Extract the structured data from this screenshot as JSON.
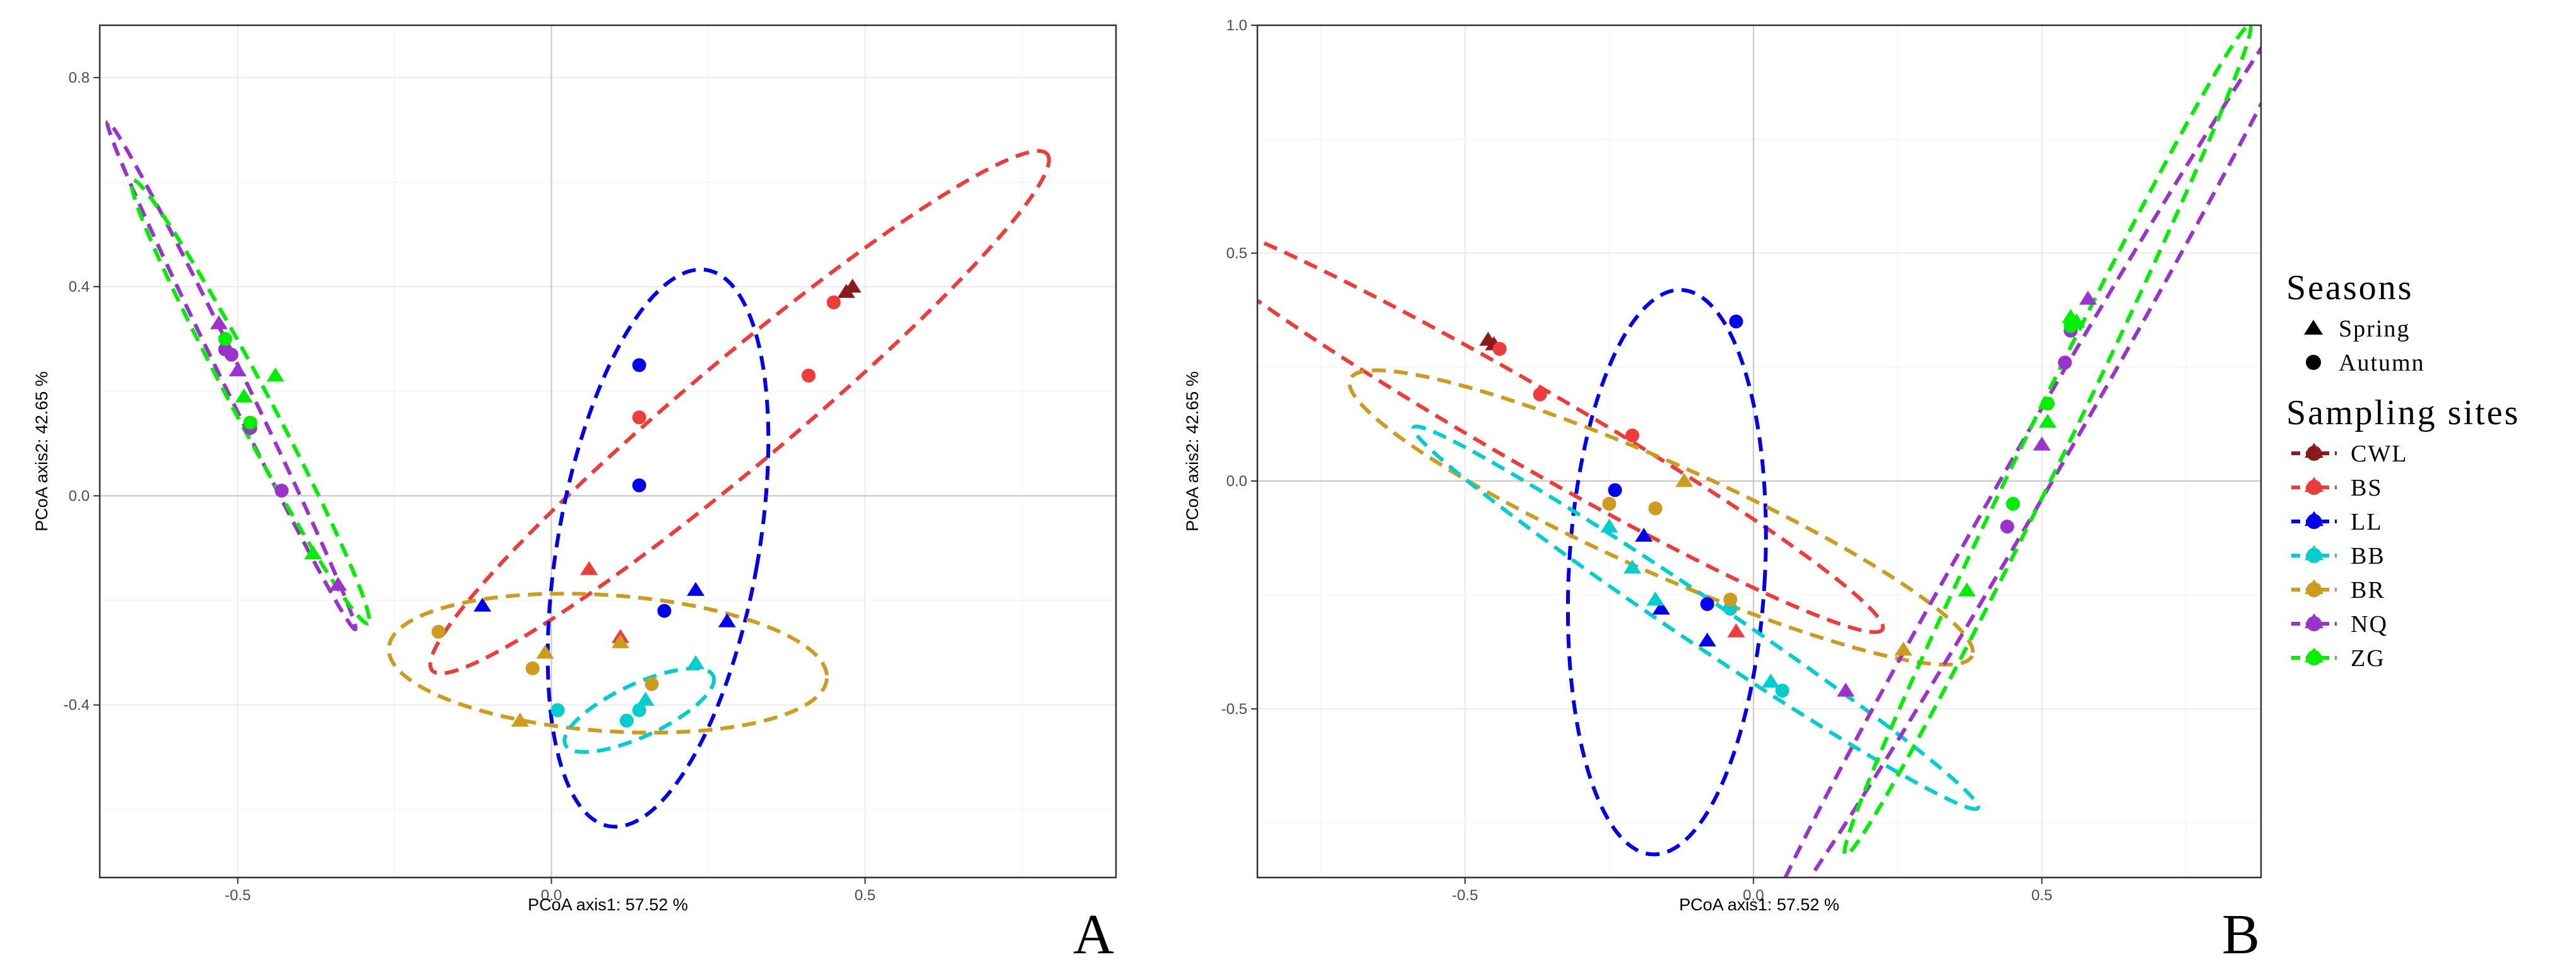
{
  "colors": {
    "CWL": "#8B1A1A",
    "BS": "#EE3B3B",
    "LL": "#0000EE",
    "BB": "#00CDCD",
    "BR": "#CD9B1D",
    "NQ": "#9A32CD",
    "ZG": "#00EE00"
  },
  "legend": {
    "seasons_title": "Seasons",
    "seasons": [
      {
        "label": "Spring",
        "shape": "triangle"
      },
      {
        "label": "Autumn",
        "shape": "circle"
      }
    ],
    "sites_title": "Sampling sites",
    "sites": [
      "CWL",
      "BS",
      "LL",
      "BB",
      "BR",
      "NQ",
      "ZG"
    ]
  },
  "chart_data": [
    {
      "type": "scatter",
      "panel_label": "A",
      "xlabel": "PCoA axis1:  57.52 %",
      "ylabel": "PCoA axis2:  42.65 %",
      "xlim": [
        -0.72,
        0.9
      ],
      "ylim": [
        -0.73,
        0.9
      ],
      "xticks": [
        -0.5,
        0.0,
        0.5
      ],
      "yticks": [
        -0.4,
        0.0,
        0.4,
        0.8
      ],
      "xtick_labels": [
        "-0.5",
        "0.0",
        "0.5"
      ],
      "ytick_labels": [
        "-0.4",
        "0.0",
        "0.4",
        "0.8"
      ],
      "points": [
        {
          "site": "CWL",
          "season": "Spring",
          "x": 0.48,
          "y": 0.4
        },
        {
          "site": "CWL",
          "season": "Spring",
          "x": 0.47,
          "y": 0.39
        },
        {
          "site": "BS",
          "season": "Autumn",
          "x": 0.45,
          "y": 0.37
        },
        {
          "site": "BS",
          "season": "Autumn",
          "x": 0.41,
          "y": 0.23
        },
        {
          "site": "BS",
          "season": "Autumn",
          "x": 0.14,
          "y": 0.15
        },
        {
          "site": "BS",
          "season": "Spring",
          "x": 0.06,
          "y": -0.14
        },
        {
          "site": "BS",
          "season": "Spring",
          "x": 0.11,
          "y": -0.27
        },
        {
          "site": "LL",
          "season": "Autumn",
          "x": 0.14,
          "y": 0.25
        },
        {
          "site": "LL",
          "season": "Autumn",
          "x": 0.14,
          "y": 0.02
        },
        {
          "site": "LL",
          "season": "Autumn",
          "x": 0.18,
          "y": -0.22
        },
        {
          "site": "LL",
          "season": "Spring",
          "x": 0.23,
          "y": -0.18
        },
        {
          "site": "LL",
          "season": "Spring",
          "x": 0.28,
          "y": -0.24
        },
        {
          "site": "LL",
          "season": "Spring",
          "x": -0.11,
          "y": -0.21
        },
        {
          "site": "BB",
          "season": "Autumn",
          "x": 0.01,
          "y": -0.41
        },
        {
          "site": "BB",
          "season": "Autumn",
          "x": 0.12,
          "y": -0.43
        },
        {
          "site": "BB",
          "season": "Autumn",
          "x": 0.14,
          "y": -0.41
        },
        {
          "site": "BB",
          "season": "Spring",
          "x": 0.15,
          "y": -0.39
        },
        {
          "site": "BB",
          "season": "Spring",
          "x": 0.23,
          "y": -0.32
        },
        {
          "site": "BR",
          "season": "Autumn",
          "x": -0.18,
          "y": -0.26
        },
        {
          "site": "BR",
          "season": "Autumn",
          "x": -0.03,
          "y": -0.33
        },
        {
          "site": "BR",
          "season": "Autumn",
          "x": 0.16,
          "y": -0.36
        },
        {
          "site": "BR",
          "season": "Spring",
          "x": -0.01,
          "y": -0.3
        },
        {
          "site": "BR",
          "season": "Spring",
          "x": 0.11,
          "y": -0.28
        },
        {
          "site": "BR",
          "season": "Spring",
          "x": -0.05,
          "y": -0.43
        },
        {
          "site": "NQ",
          "season": "Spring",
          "x": -0.53,
          "y": 0.33
        },
        {
          "site": "NQ",
          "season": "Autumn",
          "x": -0.52,
          "y": 0.28
        },
        {
          "site": "NQ",
          "season": "Autumn",
          "x": -0.51,
          "y": 0.27
        },
        {
          "site": "NQ",
          "season": "Spring",
          "x": -0.5,
          "y": 0.24
        },
        {
          "site": "NQ",
          "season": "Autumn",
          "x": -0.48,
          "y": 0.13
        },
        {
          "site": "NQ",
          "season": "Autumn",
          "x": -0.43,
          "y": 0.01
        },
        {
          "site": "NQ",
          "season": "Spring",
          "x": -0.34,
          "y": -0.17
        },
        {
          "site": "ZG",
          "season": "Autumn",
          "x": -0.52,
          "y": 0.3
        },
        {
          "site": "ZG",
          "season": "Spring",
          "x": -0.44,
          "y": 0.23
        },
        {
          "site": "ZG",
          "season": "Spring",
          "x": -0.49,
          "y": 0.19
        },
        {
          "site": "ZG",
          "season": "Autumn",
          "x": -0.48,
          "y": 0.14
        },
        {
          "site": "ZG",
          "season": "Spring",
          "x": -0.38,
          "y": -0.11
        }
      ],
      "ellipses": [
        {
          "site": "BS",
          "cx": 0.3,
          "cy": 0.16,
          "rx": 0.64,
          "ry": 0.1,
          "angle_deg": 40
        },
        {
          "site": "LL",
          "cx": 0.17,
          "cy": -0.1,
          "rx": 0.16,
          "ry": 0.54,
          "angle_deg": -10
        },
        {
          "site": "BR",
          "cx": 0.09,
          "cy": -0.32,
          "rx": 0.35,
          "ry": 0.13,
          "angle_deg": -4
        },
        {
          "site": "BB",
          "cx": 0.14,
          "cy": -0.41,
          "rx": 0.13,
          "ry": 0.05,
          "angle_deg": 25
        },
        {
          "site": "NQ",
          "cx": -0.51,
          "cy": 0.23,
          "rx": 0.45,
          "ry": 0.02,
          "angle_deg": -64
        },
        {
          "site": "ZG",
          "cx": -0.48,
          "cy": 0.18,
          "rx": 0.4,
          "ry": 0.035,
          "angle_deg": -62
        }
      ]
    },
    {
      "type": "scatter",
      "panel_label": "B",
      "xlabel": "PCoA axis1:  57.52 %",
      "ylabel": "PCoA axis2:  42.65 %",
      "xlim": [
        -0.86,
        0.88
      ],
      "ylim": [
        -0.87,
        1.0
      ],
      "xticks": [
        -0.5,
        0.0,
        0.5
      ],
      "yticks": [
        -0.5,
        0.0,
        0.5,
        1.0
      ],
      "xtick_labels": [
        "-0.5",
        "0.0",
        "0.5"
      ],
      "ytick_labels": [
        "-0.5",
        "0.0",
        "0.5",
        "1.0"
      ],
      "points": [
        {
          "site": "CWL",
          "season": "Spring",
          "x": -0.46,
          "y": 0.31
        },
        {
          "site": "CWL",
          "season": "Spring",
          "x": -0.45,
          "y": 0.3
        },
        {
          "site": "BS",
          "season": "Autumn",
          "x": -0.44,
          "y": 0.29
        },
        {
          "site": "BS",
          "season": "Autumn",
          "x": -0.37,
          "y": 0.19
        },
        {
          "site": "BS",
          "season": "Autumn",
          "x": -0.21,
          "y": 0.1
        },
        {
          "site": "BS",
          "season": "Spring",
          "x": -0.03,
          "y": -0.33
        },
        {
          "site": "LL",
          "season": "Autumn",
          "x": -0.03,
          "y": 0.35
        },
        {
          "site": "LL",
          "season": "Autumn",
          "x": -0.24,
          "y": -0.02
        },
        {
          "site": "LL",
          "season": "Autumn",
          "x": -0.08,
          "y": -0.27
        },
        {
          "site": "LL",
          "season": "Spring",
          "x": -0.19,
          "y": -0.12
        },
        {
          "site": "LL",
          "season": "Spring",
          "x": -0.16,
          "y": -0.28
        },
        {
          "site": "LL",
          "season": "Spring",
          "x": -0.08,
          "y": -0.35
        },
        {
          "site": "BB",
          "season": "Spring",
          "x": -0.25,
          "y": -0.1
        },
        {
          "site": "BB",
          "season": "Spring",
          "x": -0.21,
          "y": -0.19
        },
        {
          "site": "BB",
          "season": "Spring",
          "x": -0.17,
          "y": -0.26
        },
        {
          "site": "BB",
          "season": "Autumn",
          "x": -0.04,
          "y": -0.28
        },
        {
          "site": "BB",
          "season": "Spring",
          "x": 0.03,
          "y": -0.44
        },
        {
          "site": "BB",
          "season": "Autumn",
          "x": 0.05,
          "y": -0.46
        },
        {
          "site": "BR",
          "season": "Autumn",
          "x": -0.25,
          "y": -0.05
        },
        {
          "site": "BR",
          "season": "Autumn",
          "x": -0.17,
          "y": -0.06
        },
        {
          "site": "BR",
          "season": "Spring",
          "x": -0.12,
          "y": 0.0
        },
        {
          "site": "BR",
          "season": "Autumn",
          "x": -0.04,
          "y": -0.26
        },
        {
          "site": "BR",
          "season": "Spring",
          "x": 0.26,
          "y": -0.37
        },
        {
          "site": "NQ",
          "season": "Spring",
          "x": 0.16,
          "y": -0.46
        },
        {
          "site": "NQ",
          "season": "Autumn",
          "x": 0.44,
          "y": -0.1
        },
        {
          "site": "NQ",
          "season": "Spring",
          "x": 0.5,
          "y": 0.08
        },
        {
          "site": "NQ",
          "season": "Autumn",
          "x": 0.54,
          "y": 0.26
        },
        {
          "site": "NQ",
          "season": "Autumn",
          "x": 0.55,
          "y": 0.33
        },
        {
          "site": "NQ",
          "season": "Spring",
          "x": 0.58,
          "y": 0.4
        },
        {
          "site": "ZG",
          "season": "Spring",
          "x": 0.37,
          "y": -0.24
        },
        {
          "site": "ZG",
          "season": "Autumn",
          "x": 0.45,
          "y": -0.05
        },
        {
          "site": "ZG",
          "season": "Spring",
          "x": 0.51,
          "y": 0.13
        },
        {
          "site": "ZG",
          "season": "Autumn",
          "x": 0.51,
          "y": 0.17
        },
        {
          "site": "ZG",
          "season": "Autumn",
          "x": 0.55,
          "y": 0.34
        },
        {
          "site": "ZG",
          "season": "Spring",
          "x": 0.55,
          "y": 0.36
        },
        {
          "site": "ZG",
          "season": "Spring",
          "x": 0.56,
          "y": 0.35
        }
      ],
      "ellipses": [
        {
          "site": "BS",
          "cx": -0.4,
          "cy": 0.13,
          "rx": 0.72,
          "ry": 0.085,
          "angle_deg": -30
        },
        {
          "site": "LL",
          "cx": -0.15,
          "cy": -0.2,
          "rx": 0.17,
          "ry": 0.62,
          "angle_deg": -3
        },
        {
          "site": "BR",
          "cx": -0.16,
          "cy": -0.08,
          "rx": 0.59,
          "ry": 0.12,
          "angle_deg": -24
        },
        {
          "site": "BB",
          "cx": -0.1,
          "cy": -0.3,
          "rx": 0.59,
          "ry": 0.05,
          "angle_deg": -34
        },
        {
          "site": "NQ",
          "cx": 0.5,
          "cy": 0.06,
          "rx": 0.96,
          "ry": 0.05,
          "angle_deg": 60
        },
        {
          "site": "ZG",
          "cx": 0.51,
          "cy": 0.09,
          "rx": 0.8,
          "ry": 0.045,
          "angle_deg": 64
        }
      ]
    }
  ]
}
